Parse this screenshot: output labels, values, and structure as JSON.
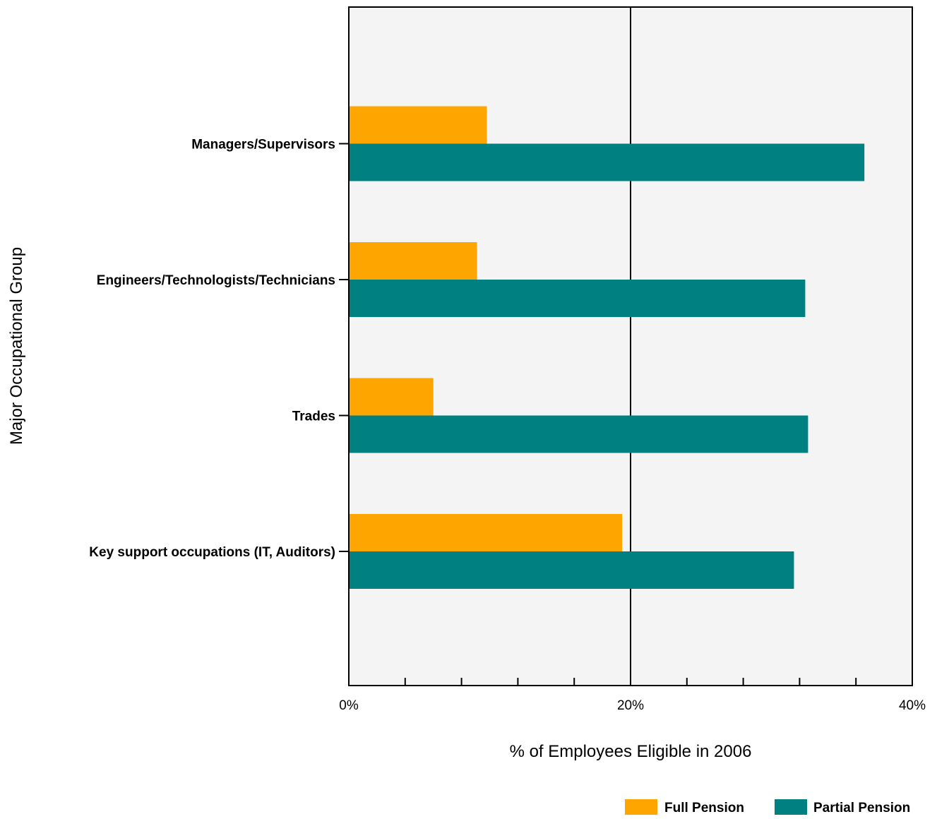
{
  "chart_data": {
    "type": "bar",
    "orientation": "horizontal",
    "title": "",
    "xlabel": "% of Employees Eligible in 2006",
    "ylabel": "Major Occupational Group",
    "categories": [
      "Managers/Supervisors",
      "Engineers/Technologists/Technicians",
      "Trades",
      "Key support occupations (IT, Auditors)"
    ],
    "series": [
      {
        "name": "Full Pension",
        "color": "#FFA500",
        "values": [
          9.8,
          9.1,
          6.0,
          19.4
        ]
      },
      {
        "name": "Partial Pension",
        "color": "#008080",
        "values": [
          36.6,
          32.4,
          32.6,
          31.6
        ]
      }
    ],
    "xlim": [
      0,
      40
    ],
    "xticks": [
      0,
      20,
      40
    ],
    "xtick_labels": [
      "0%",
      "20%",
      "40%"
    ],
    "minor_tick_step": 4,
    "gridlines": [
      20
    ],
    "plot_background": "#F4F4F4",
    "legend": {
      "position": "bottom-right"
    }
  }
}
